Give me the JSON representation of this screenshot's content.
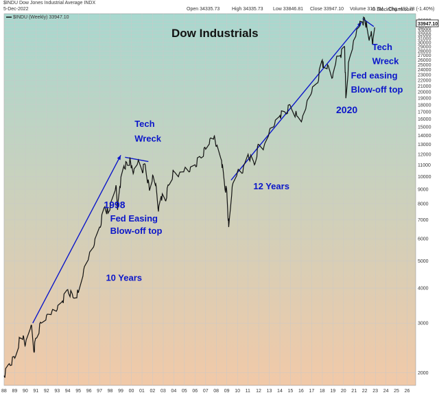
{
  "header": {
    "symbol": "$INDU",
    "name": "Dow Jones Industrial Average INDX",
    "date": "5-Dec-2022",
    "open_label": "Open",
    "open": "34335.73",
    "high_label": "High",
    "high": "34335.73",
    "low_label": "Low",
    "low": "33846.81",
    "close_label": "Close",
    "close": "33947.10",
    "volume_label": "Volume",
    "volume": "316.7M",
    "chg_label": "Chg",
    "chg": "-482.78 (-1.40%)",
    "legend": "$INDU (Weekly) 33947.10",
    "watermark": "© StockCharts.com"
  },
  "colors": {
    "background_top": "#a8d8cf",
    "background_bottom": "#f1c9a8",
    "price_line": "#111111",
    "annotation": "#0b16c9",
    "grid": "#c9c9c9"
  },
  "chart_data": {
    "type": "line",
    "title": "Dow Industrials",
    "scale": "log",
    "ylim": [
      1800,
      38000
    ],
    "y_ticks": [
      2000,
      3000,
      4000,
      5000,
      6000,
      7000,
      8000,
      9000,
      10000,
      11000,
      12000,
      13000,
      14000,
      15000,
      16000,
      17000,
      18000,
      19000,
      20000,
      21000,
      22000,
      23000,
      24000,
      25000,
      26000,
      27000,
      28000,
      29000,
      30000,
      31000,
      32000,
      33000,
      34000,
      35000,
      36000
    ],
    "x_ticks": [
      "88",
      "89",
      "90",
      "91",
      "92",
      "93",
      "94",
      "95",
      "96",
      "97",
      "98",
      "99",
      "00",
      "01",
      "02",
      "03",
      "04",
      "05",
      "06",
      "07",
      "08",
      "09",
      "10",
      "11",
      "12",
      "13",
      "14",
      "15",
      "16",
      "17",
      "18",
      "19",
      "20",
      "21",
      "22",
      "23",
      "24",
      "25",
      "26"
    ],
    "grid": true,
    "last_value": "33947.10",
    "series": [
      {
        "name": "$INDU (Weekly)",
        "x": [
          1988.0,
          1988.5,
          1989.0,
          1989.5,
          1989.8,
          1990.0,
          1990.55,
          1990.8,
          1991.0,
          1991.5,
          1992.0,
          1992.5,
          1993.0,
          1993.5,
          1994.0,
          1994.5,
          1995.0,
          1995.5,
          1996.0,
          1996.5,
          1997.0,
          1997.5,
          1997.8,
          1998.0,
          1998.55,
          1998.7,
          1998.9,
          1999.3,
          1999.6,
          1999.9,
          2000.0,
          2000.2,
          2000.6,
          2001.0,
          2001.3,
          2001.7,
          2002.0,
          2002.3,
          2002.55,
          2002.8,
          2003.2,
          2003.5,
          2004.0,
          2004.5,
          2005.0,
          2005.5,
          2006.0,
          2006.5,
          2007.0,
          2007.4,
          2007.8,
          2008.0,
          2008.5,
          2008.8,
          2009.0,
          2009.17,
          2009.5,
          2010.0,
          2010.5,
          2011.0,
          2011.6,
          2012.0,
          2012.5,
          2013.0,
          2013.5,
          2014.0,
          2014.5,
          2015.0,
          2015.6,
          2016.1,
          2016.5,
          2017.0,
          2017.5,
          2018.0,
          2018.1,
          2018.5,
          2018.97,
          2019.3,
          2019.7,
          2020.1,
          2020.22,
          2020.5,
          2020.9,
          2021.2,
          2021.5,
          2021.8,
          2022.0,
          2022.2,
          2022.45,
          2022.6,
          2022.75,
          2022.93
        ],
        "values": [
          1950,
          2150,
          2250,
          2650,
          2700,
          2500,
          2950,
          2380,
          2650,
          3000,
          3200,
          3300,
          3350,
          3600,
          3950,
          3700,
          3850,
          4650,
          5200,
          5700,
          6600,
          7800,
          7400,
          7900,
          9300,
          7600,
          9200,
          10900,
          11000,
          11400,
          10900,
          10300,
          11200,
          10500,
          11000,
          8900,
          10100,
          9400,
          7500,
          8500,
          8200,
          9300,
          10400,
          10200,
          10600,
          10400,
          11000,
          11700,
          12500,
          13600,
          13900,
          12800,
          11400,
          9200,
          8800,
          6600,
          9200,
          10400,
          10300,
          12000,
          11000,
          13000,
          12800,
          14500,
          15300,
          16500,
          16900,
          17800,
          16400,
          16000,
          18000,
          20000,
          21500,
          26000,
          24500,
          25000,
          22500,
          26000,
          27000,
          29000,
          19000,
          25800,
          29800,
          32500,
          34500,
          35500,
          36300,
          34000,
          31000,
          32800,
          29500,
          33947
        ]
      }
    ],
    "trendlines": [
      {
        "from": [
          1990.7,
          3000
        ],
        "to": [
          1999.0,
          11900
        ]
      },
      {
        "from": [
          1999.4,
          11700
        ],
        "to": [
          2001.6,
          11300
        ]
      },
      {
        "from": [
          2009.4,
          9700
        ],
        "to": [
          2021.7,
          35500
        ]
      },
      {
        "from": [
          2021.8,
          36500
        ],
        "to": [
          2022.85,
          34200
        ]
      }
    ],
    "annotations": [
      {
        "text": "Tech",
        "x": 2000.3,
        "y": 15000,
        "size": 13
      },
      {
        "text": "Wreck",
        "x": 2000.3,
        "y": 13300,
        "size": 13
      },
      {
        "text": "1998",
        "x": 1997.4,
        "y": 7700,
        "size": 14
      },
      {
        "text": "Fed Easing",
        "x": 1998.0,
        "y": 6900,
        "size": 13
      },
      {
        "text": "Blow-off top",
        "x": 1998.0,
        "y": 6250,
        "size": 13
      },
      {
        "text": "10 Years",
        "x": 1997.6,
        "y": 4250,
        "size": 13
      },
      {
        "text": "12 Years",
        "x": 2011.5,
        "y": 9000,
        "size": 13
      },
      {
        "text": "Tech",
        "x": 2022.7,
        "y": 28200,
        "size": 13
      },
      {
        "text": "Wreck",
        "x": 2022.7,
        "y": 25100,
        "size": 13
      },
      {
        "text": "Fed easing",
        "x": 2020.7,
        "y": 22300,
        "size": 13
      },
      {
        "text": "Blow-off top",
        "x": 2020.7,
        "y": 19900,
        "size": 13
      },
      {
        "text": "2020",
        "x": 2019.3,
        "y": 16800,
        "size": 14
      }
    ]
  }
}
